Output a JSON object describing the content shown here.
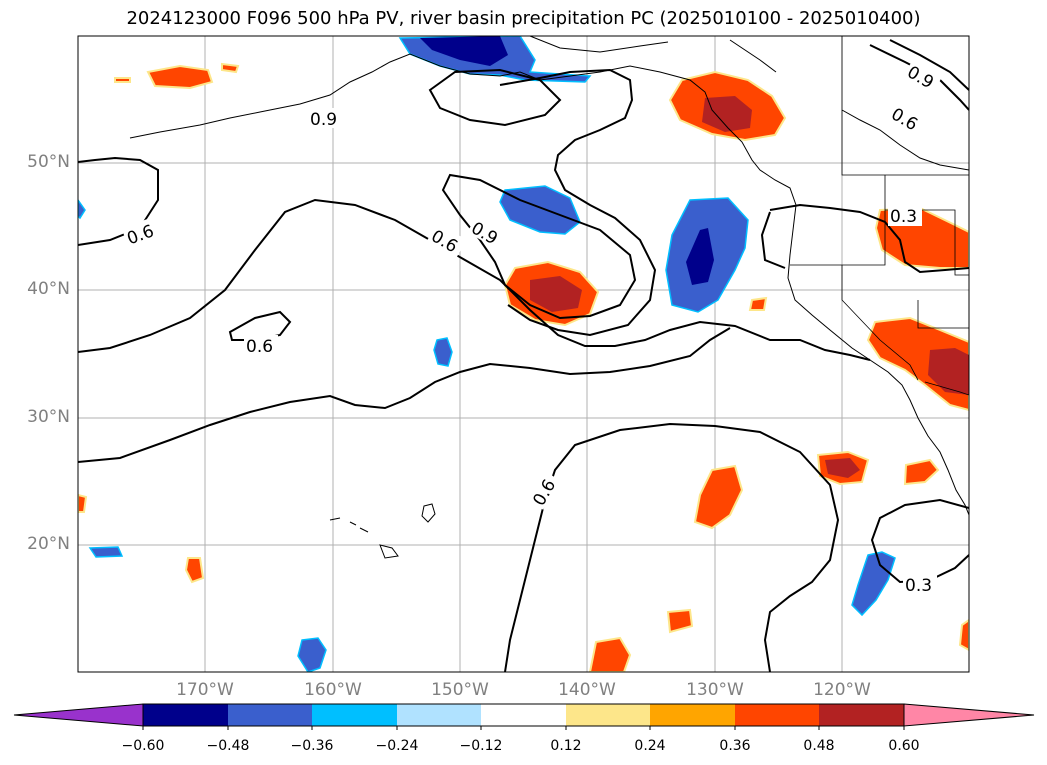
{
  "title": "2024123000 F096 500 hPa PV, river basin precipitation PC (2025010100 - 2025010400)",
  "map": {
    "lat_labels": [
      "50°N",
      "40°N",
      "30°N",
      "20°N"
    ],
    "lon_labels": [
      "170°W",
      "160°W",
      "150°W",
      "140°W",
      "130°W",
      "120°W"
    ],
    "contour_labels": [
      "0.9",
      "0.6",
      "0.6",
      "0.9",
      "0.6",
      "0.6",
      "0.3",
      "0.9",
      "0.6",
      "0.3",
      "0.3"
    ],
    "colors": {
      "neg_strong": "#00008b",
      "neg_mid": "#3a5fcd",
      "neg_light": "#00bfff",
      "neg_faint": "#b0e2ff",
      "pos_faint": "#fde68a",
      "pos_light": "#ffa500",
      "pos_mid": "#ff4500",
      "pos_strong": "#b22222",
      "pos_extreme": "#ff86a6",
      "neg_extreme": "#9932cc"
    }
  },
  "colorbar": {
    "ticks": [
      "−0.60",
      "−0.48",
      "−0.36",
      "−0.24",
      "−0.12",
      "0.12",
      "0.24",
      "0.36",
      "0.48",
      "0.60"
    ],
    "colors": [
      "#9932cc",
      "#00008b",
      "#3a5fcd",
      "#2e70d8",
      "#00bfff",
      "#b0e2ff",
      "#ffffff",
      "#fde68a",
      "#ffa500",
      "#ff4500",
      "#b22222",
      "#ff86a6"
    ]
  }
}
